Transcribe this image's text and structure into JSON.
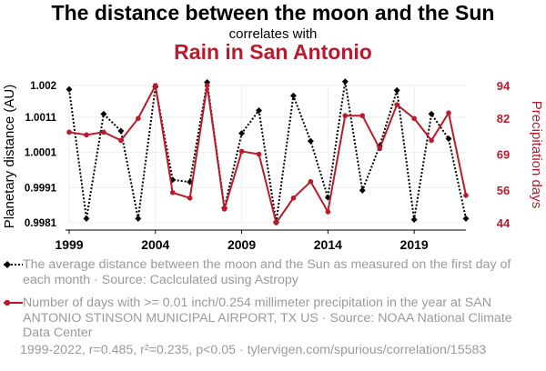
{
  "header": {
    "title": "The distance between the moon and the Sun",
    "subtitle": "correlates with",
    "title2": "Rain in San Antonio"
  },
  "legend": {
    "series1": "The average distance between the moon and the Sun as measured on the first day of each month · Source: Caclculated using Astropy",
    "series2": "Number of days with >= 0.01 inch/0.254 millimeter precipitation in the year at SAN ANTONIO STINSON MUNICIPAL AIRPORT, TX US · Source: NOAA National Climate Data Center"
  },
  "footer": "1999-2022, r=0.485, r²=0.235, p<0.05 · tylervigen.com/spurious/correlation/15583",
  "colors": {
    "series1": "#000000",
    "series2": "#ba1b2c",
    "grid": "#eeeeee"
  },
  "chart_data": {
    "type": "line",
    "x": [
      1999,
      2000,
      2001,
      2002,
      2003,
      2004,
      2005,
      2006,
      2007,
      2008,
      2009,
      2010,
      2011,
      2012,
      2013,
      2014,
      2015,
      2016,
      2017,
      2018,
      2019,
      2020,
      2021,
      2022
    ],
    "xlabel": "",
    "xticks": [
      1999,
      2004,
      2009,
      2014,
      2019
    ],
    "xlim": [
      1999,
      2022
    ],
    "series": [
      {
        "name": "Planetary distance (AU)",
        "axis": "left",
        "style": "dotted",
        "marker": "diamond",
        "values": [
          1.00189,
          0.99822,
          1.00119,
          1.00071,
          0.99822,
          1.00196,
          0.99932,
          0.99926,
          1.00209,
          0.99852,
          1.00064,
          1.00129,
          0.99812,
          1.00171,
          1.00042,
          0.99882,
          1.00211,
          0.99902,
          1.00028,
          1.00186,
          0.99819,
          1.00119,
          1.00049,
          0.99822
        ]
      },
      {
        "name": "Precipitation days",
        "axis": "right",
        "style": "solid",
        "marker": "circle",
        "values": [
          77,
          76,
          77,
          74,
          82,
          94,
          55,
          53,
          94,
          49,
          70,
          69,
          44,
          53,
          59,
          48,
          83,
          83,
          71,
          87,
          82,
          74,
          84,
          54
        ]
      }
    ],
    "left_axis": {
      "label": "Planetary distance (AU)",
      "ylim": [
        0.9981,
        1.002
      ],
      "ticks": [
        "0.9981",
        "0.9991",
        "1.0001",
        "1.0011",
        "1.002"
      ]
    },
    "right_axis": {
      "label": "Precipitation days",
      "ylim": [
        44,
        94
      ],
      "ticks": [
        "44",
        "56",
        "69",
        "82",
        "94"
      ]
    }
  }
}
